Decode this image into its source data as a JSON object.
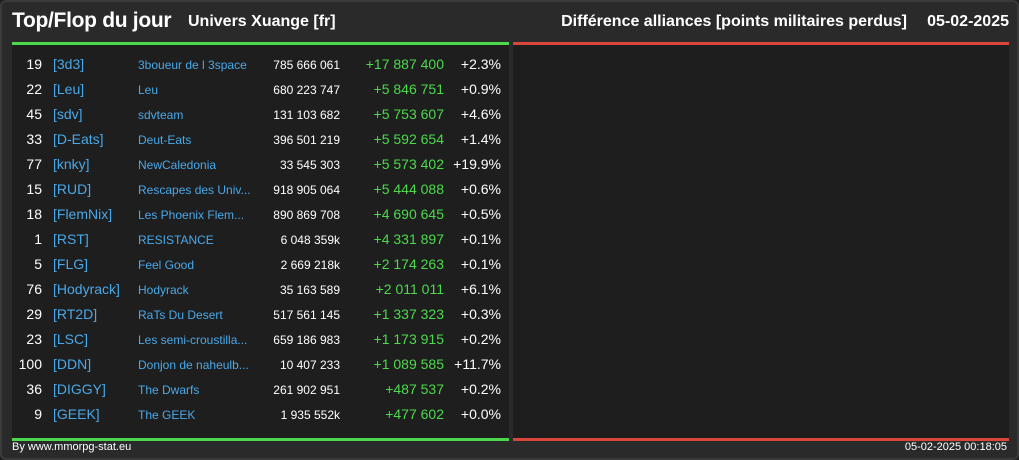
{
  "header": {
    "title": "Top/Flop du jour",
    "universe": "Univers Xuange [fr]",
    "subtitle": "Différence alliances [points militaires perdus]",
    "date": "05-02-2025"
  },
  "colors": {
    "top_accent": "#4cd94c",
    "flop_accent": "#d9443b",
    "link": "#4aa8e8",
    "positive": "#4cd94c"
  },
  "top_rows": [
    {
      "rank": "19",
      "tag": "[3d3]",
      "name": "3boueur de l 3space",
      "points": "785 666 061",
      "diff": "+17 887 400",
      "pct": "+2.3%"
    },
    {
      "rank": "22",
      "tag": "[Leu]",
      "name": "Leu",
      "points": "680 223 747",
      "diff": "+5 846 751",
      "pct": "+0.9%"
    },
    {
      "rank": "45",
      "tag": "[sdv]",
      "name": "sdvteam",
      "points": "131 103 682",
      "diff": "+5 753 607",
      "pct": "+4.6%"
    },
    {
      "rank": "33",
      "tag": "[D-Eats]",
      "name": "Deut-Eats",
      "points": "396 501 219",
      "diff": "+5 592 654",
      "pct": "+1.4%"
    },
    {
      "rank": "77",
      "tag": "[knky]",
      "name": "NewCaledonia",
      "points": "33 545 303",
      "diff": "+5 573 402",
      "pct": "+19.9%"
    },
    {
      "rank": "15",
      "tag": "[RUD]",
      "name": "Rescapes des Univ...",
      "points": "918 905 064",
      "diff": "+5 444 088",
      "pct": "+0.6%"
    },
    {
      "rank": "18",
      "tag": "[FlemNix]",
      "name": "Les Phoenix Flem...",
      "points": "890 869 708",
      "diff": "+4 690 645",
      "pct": "+0.5%"
    },
    {
      "rank": "1",
      "tag": "[RST]",
      "name": "RESISTANCE",
      "points": "6 048 359k",
      "diff": "+4 331 897",
      "pct": "+0.1%"
    },
    {
      "rank": "5",
      "tag": "[FLG]",
      "name": "Feel Good",
      "points": "2 669 218k",
      "diff": "+2 174 263",
      "pct": "+0.1%"
    },
    {
      "rank": "76",
      "tag": "[Hodyrack]",
      "name": "Hodyrack",
      "points": "35 163 589",
      "diff": "+2 011 011",
      "pct": "+6.1%"
    },
    {
      "rank": "29",
      "tag": "[RT2D]",
      "name": "RaTs Du Desert",
      "points": "517 561 145",
      "diff": "+1 337 323",
      "pct": "+0.3%"
    },
    {
      "rank": "23",
      "tag": "[LSC]",
      "name": "Les semi-croustilla...",
      "points": "659 186 983",
      "diff": "+1 173 915",
      "pct": "+0.2%"
    },
    {
      "rank": "100",
      "tag": "[DDN]",
      "name": "Donjon de naheulb...",
      "points": "10 407 233",
      "diff": "+1 089 585",
      "pct": "+11.7%"
    },
    {
      "rank": "36",
      "tag": "[DIGGY]",
      "name": "The Dwarfs",
      "points": "261 902 951",
      "diff": "+487 537",
      "pct": "+0.2%"
    },
    {
      "rank": "9",
      "tag": "[GEEK]",
      "name": "The GEEK",
      "points": "1 935 552k",
      "diff": "+477 602",
      "pct": "+0.0%"
    }
  ],
  "footer": {
    "credit": "By www.mmorpg-stat.eu",
    "timestamp": "05-02-2025 00:18:05"
  }
}
